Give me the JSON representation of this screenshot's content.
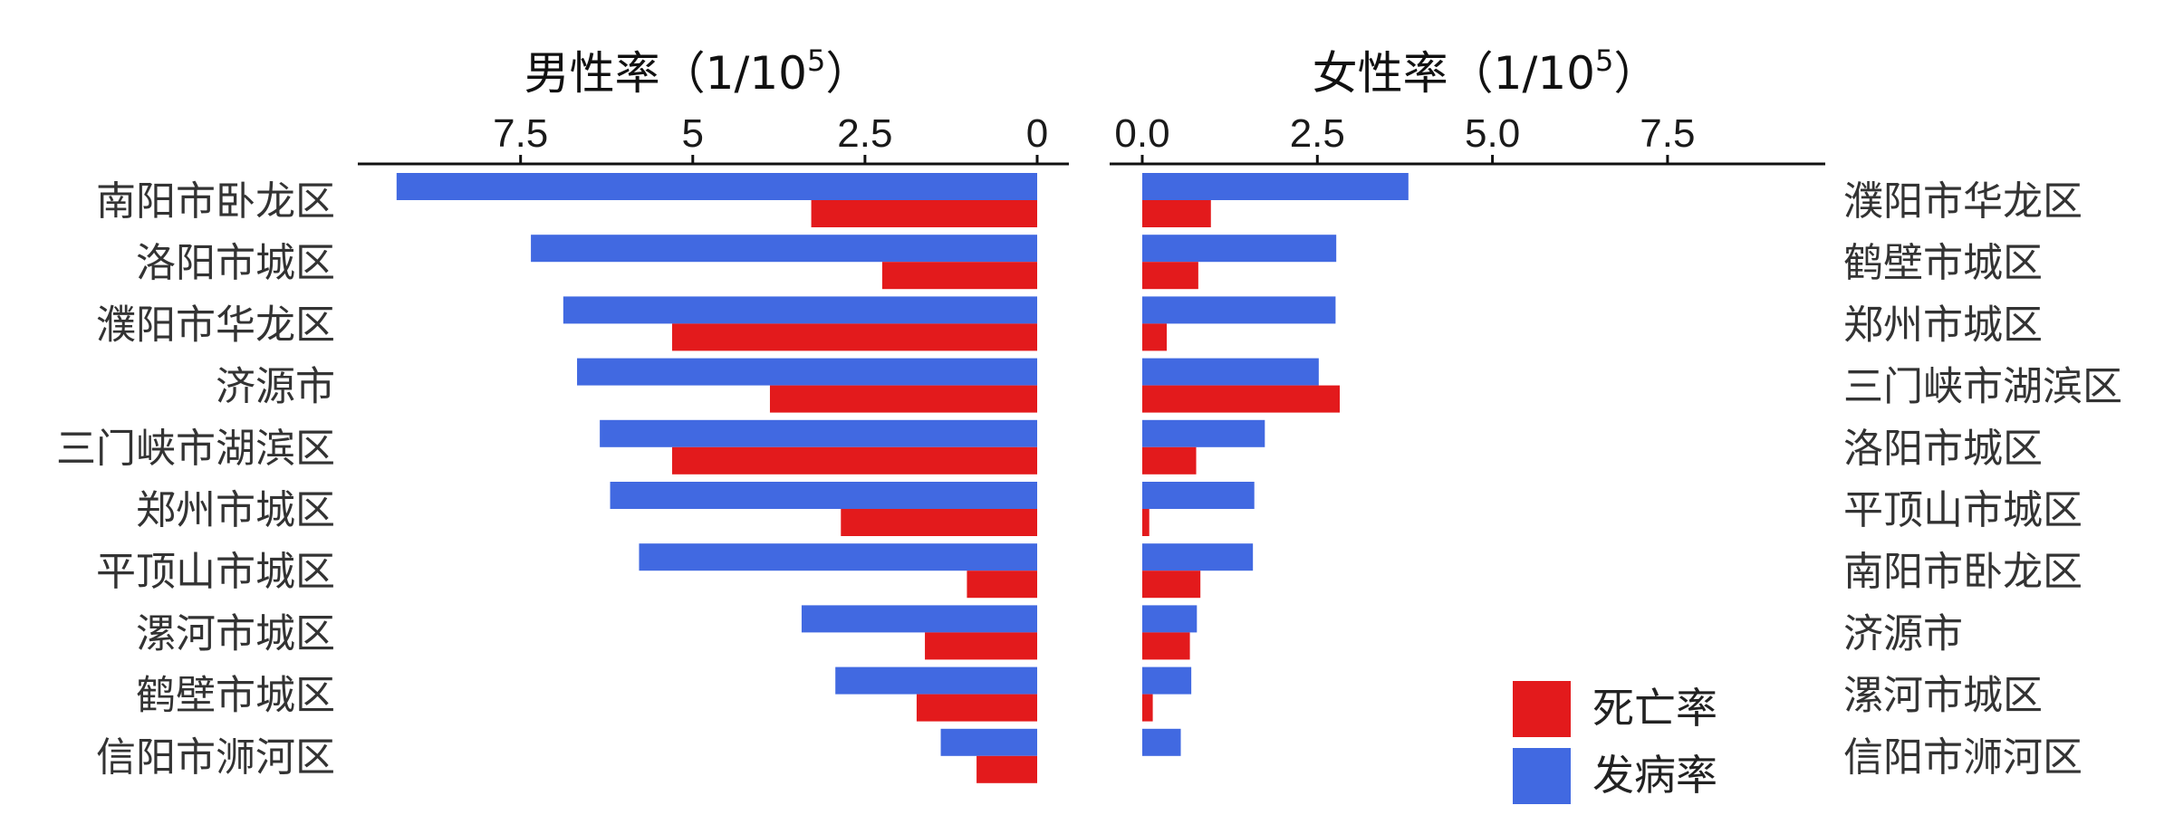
{
  "chart_data": [
    {
      "type": "bar",
      "orientation": "horizontal",
      "direction": "reversed",
      "title": "男性率（1/10⁵）",
      "ticks": [
        "7.5",
        "5",
        "2.5",
        "0"
      ],
      "xlim": [
        0,
        9.6
      ],
      "categories": [
        "南阳市卧龙区",
        "洛阳市城区",
        "濮阳市华龙区",
        "济源市",
        "三门峡市湖滨区",
        "郑州市城区",
        "平顶山市城区",
        "漯河市城区",
        "鹤壁市城区",
        "信阳市浉河区"
      ],
      "series": [
        {
          "name": "发病率",
          "color": "#4169E1",
          "values": [
            9.3,
            7.35,
            6.88,
            6.68,
            6.35,
            6.2,
            5.78,
            3.42,
            2.93,
            1.4
          ]
        },
        {
          "name": "死亡率",
          "color": "#E31A1C",
          "values": [
            3.28,
            2.25,
            5.3,
            3.88,
            5.3,
            2.85,
            1.02,
            1.63,
            1.75,
            0.88
          ]
        }
      ]
    },
    {
      "type": "bar",
      "orientation": "horizontal",
      "title": "女性率（1/10⁵）",
      "ticks": [
        "0.0",
        "2.5",
        "5.0",
        "7.5"
      ],
      "xlim": [
        0,
        9.7
      ],
      "categories": [
        "濮阳市华龙区",
        "鹤壁市城区",
        "郑州市城区",
        "三门峡市湖滨区",
        "洛阳市城区",
        "平顶山市城区",
        "南阳市卧龙区",
        "济源市",
        "漯河市城区",
        "信阳市浉河区"
      ],
      "series": [
        {
          "name": "发病率",
          "color": "#4169E1",
          "values": [
            3.8,
            2.77,
            2.76,
            2.52,
            1.75,
            1.6,
            1.58,
            0.78,
            0.7,
            0.55
          ]
        },
        {
          "name": "死亡率",
          "color": "#E31A1C",
          "values": [
            0.98,
            0.8,
            0.35,
            2.82,
            0.77,
            0.1,
            0.83,
            0.68,
            0.15,
            0.0
          ]
        }
      ]
    }
  ],
  "legend": {
    "placement": "bottom-right",
    "items": [
      {
        "label": "死亡率",
        "color": "#E31A1C"
      },
      {
        "label": "发病率",
        "color": "#4169E1"
      }
    ]
  }
}
